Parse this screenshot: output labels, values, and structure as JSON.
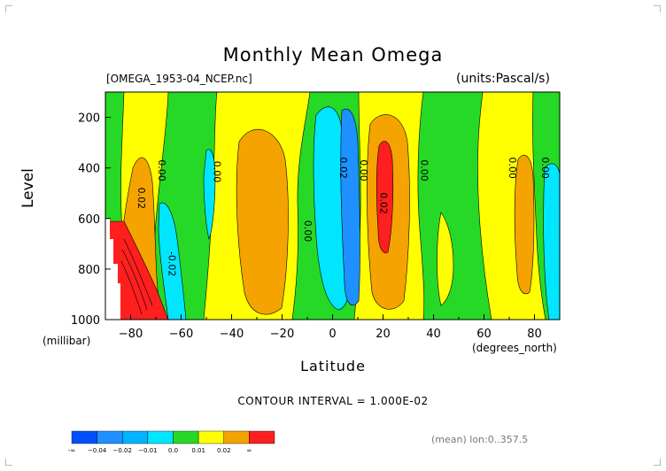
{
  "header": {
    "title": "Monthly Mean Omega",
    "file": "[OMEGA_1953-04_NCEP.nc]",
    "units": "(units:Pascal/s)"
  },
  "axes": {
    "ylabel": "Level",
    "yunit": "(millibar)",
    "xlabel": "Latitude",
    "xunit": "(degrees_north)"
  },
  "footer": {
    "contour_interval": "CONTOUR INTERVAL = 1.000E-02",
    "mean": "(mean) lon:0..357.5"
  },
  "colors": {
    "red": "#ff1f1f",
    "orange": "#f5a300",
    "yellow": "#ffff00",
    "green": "#26d926",
    "cyan": "#00e6ff",
    "blue": "#1e90ff"
  },
  "chart_data": {
    "type": "heatmap",
    "title": "Monthly Mean Omega",
    "xlabel": "Latitude",
    "ylabel": "Level",
    "xlim": [
      -90,
      90
    ],
    "ylim": [
      1000,
      100
    ],
    "x_ticks": [
      -80,
      -60,
      -40,
      -20,
      0,
      20,
      40,
      60,
      80
    ],
    "x_tick_labels": [
      "−80",
      "−60",
      "−40",
      "−20",
      "0",
      "20",
      "40",
      "60",
      "80"
    ],
    "y_ticks": [
      200,
      400,
      600,
      800,
      1000
    ],
    "contour_labels": [
      {
        "text": "0.00",
        "x": -69,
        "y": 410
      },
      {
        "text": "0.02",
        "x": -77,
        "y": 520
      },
      {
        "text": "-0.02",
        "x": -65,
        "y": 780
      },
      {
        "text": "0.00",
        "x": -47,
        "y": 415
      },
      {
        "text": "0.00",
        "x": -11,
        "y": 650
      },
      {
        "text": "0.02",
        "x": 3,
        "y": 400
      },
      {
        "text": "0.00",
        "x": 11,
        "y": 410
      },
      {
        "text": "0.02",
        "x": 19,
        "y": 540
      },
      {
        "text": "0.00",
        "x": 35,
        "y": 410
      },
      {
        "text": "0.00",
        "x": 70,
        "y": 400
      },
      {
        "text": "0.00",
        "x": 83,
        "y": 400
      }
    ],
    "bands": [
      {
        "range": "-inf..-0.04",
        "color": "#0050ff"
      },
      {
        "range": "-0.04..-0.02",
        "color": "#1e90ff"
      },
      {
        "range": "-0.02..-0.01",
        "color": "#00c8ff"
      },
      {
        "range": "-0.01..0.0",
        "color": "#00e6ff"
      },
      {
        "range": "0.0..0.01",
        "color": "#26d926"
      },
      {
        "range": "0.01..0.02",
        "color": "#ffff00"
      },
      {
        "range": "0.02..inf",
        "color": "#f5a300"
      }
    ],
    "colorbar_labels": [
      "-∞",
      "−0.04",
      "−0.02",
      "−0.01",
      "0.0",
      "0.01",
      "0.02",
      "∞"
    ],
    "colorbar_colors": [
      "#0050ff",
      "#1e90ff",
      "#00b4ff",
      "#00e6ff",
      "#26d926",
      "#ffff00",
      "#f5a300",
      "#ff1f1f"
    ]
  }
}
